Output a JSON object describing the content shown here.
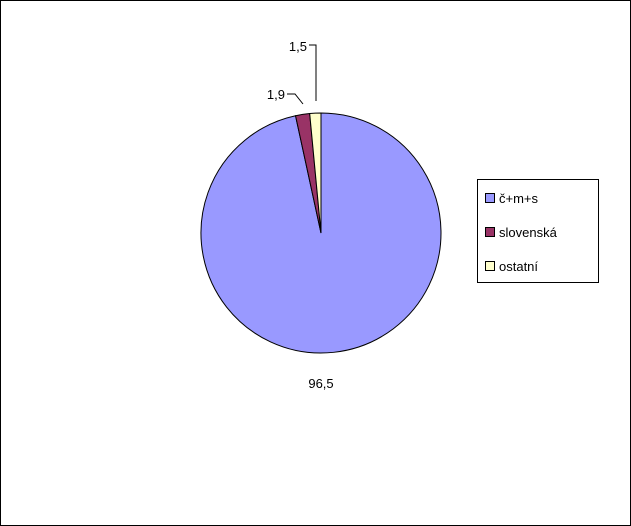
{
  "chart_data": {
    "type": "pie",
    "categories": [
      "č+m+s",
      "slovenská",
      "ostatní"
    ],
    "values": [
      96.5,
      1.9,
      1.5
    ],
    "data_labels": [
      "96,5",
      "1,9",
      "1,5"
    ],
    "colors": [
      "#9999ff",
      "#993366",
      "#ffffcc"
    ],
    "title": "",
    "legend_position": "right"
  }
}
